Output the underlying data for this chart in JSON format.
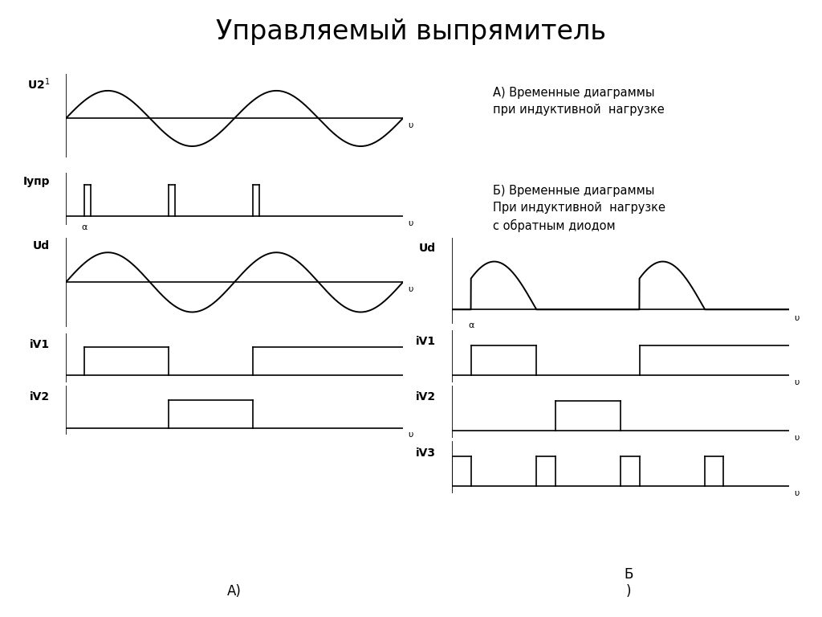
{
  "title": "Управляемый выпрямитель",
  "title_fontsize": 24,
  "bg_color": "#ffffff",
  "text_color": "#000000",
  "label_A_text": "А)",
  "label_B_text": "Б\n)",
  "annotation_A": "А) Временные диаграммы\nпри индуктивной  нагрузке",
  "annotation_B": "Б) Временные диаграммы\nПри индуктивной  нагрузке\nс обратным диодом",
  "alpha": 0.7,
  "period": 3.14159265,
  "xmax": 12.56637,
  "lw": 1.4,
  "lw_axis": 1.2
}
